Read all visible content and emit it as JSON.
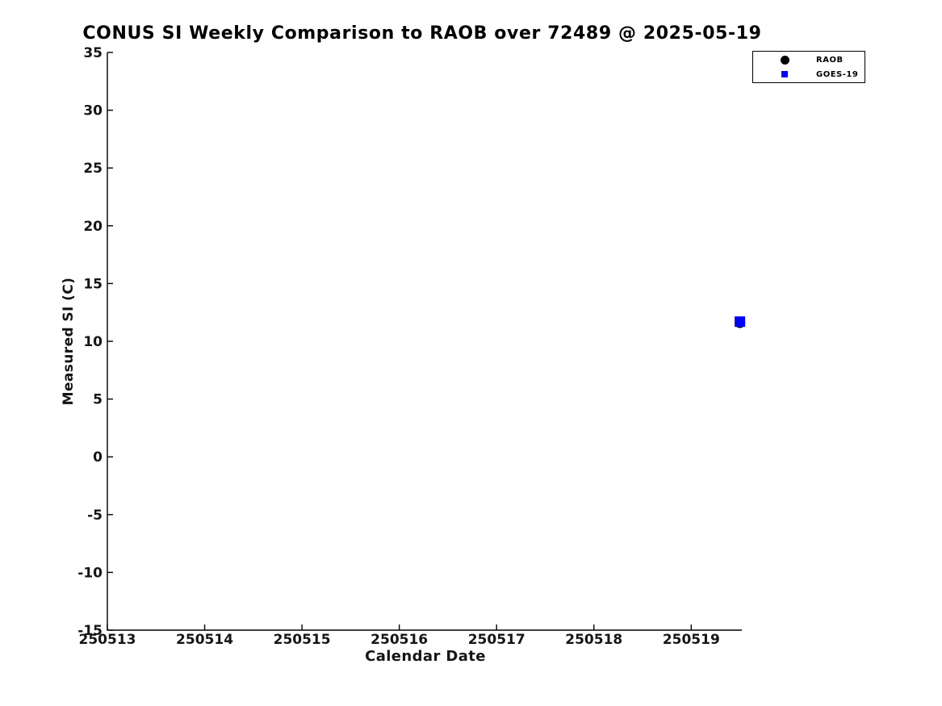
{
  "title": "CONUS SI Weekly Comparison to RAOB over 72489 @ 2025-05-19",
  "colors": {
    "raob": "#000000",
    "goes19": "#0000ff",
    "axis": "#000000",
    "text": "#151515",
    "background": "#ffffff"
  },
  "legend": {
    "items": [
      {
        "label": "RAOB",
        "marker": "circle",
        "color": "#000000"
      },
      {
        "label": "GOES-19",
        "marker": "square",
        "color": "#0000ff"
      }
    ]
  },
  "chart_data": {
    "type": "scatter",
    "title": "CONUS SI Weekly Comparison to RAOB over 72489 @ 2025-05-19",
    "xlabel": "Calendar Date",
    "ylabel": "Measured SI (C)",
    "xlim": [
      250513,
      250519.52
    ],
    "ylim": [
      -15,
      35
    ],
    "x_tick_values": [
      250513,
      250514,
      250515,
      250516,
      250517,
      250518,
      250519
    ],
    "x_tick_labels": [
      "250513",
      "250514",
      "250515",
      "250516",
      "250517",
      "250518",
      "250519"
    ],
    "y_tick_values": [
      35,
      30,
      25,
      20,
      15,
      10,
      5,
      0,
      -5,
      -10,
      -15
    ],
    "y_tick_labels": [
      "35",
      "30",
      "25",
      "20",
      "15",
      "10",
      "5",
      "0",
      "-5",
      "-10",
      "-15"
    ],
    "grid": false,
    "legend_position": "outside-top-right",
    "series": [
      {
        "name": "RAOB",
        "marker": "circle",
        "color": "#000000",
        "marker_size": 13,
        "points": [
          {
            "x": 250519.5,
            "y": 11.6
          }
        ]
      },
      {
        "name": "GOES-19",
        "marker": "square",
        "color": "#0000ff",
        "marker_size": 13,
        "points": [
          {
            "x": 250519.5,
            "y": 11.7
          }
        ]
      }
    ]
  }
}
